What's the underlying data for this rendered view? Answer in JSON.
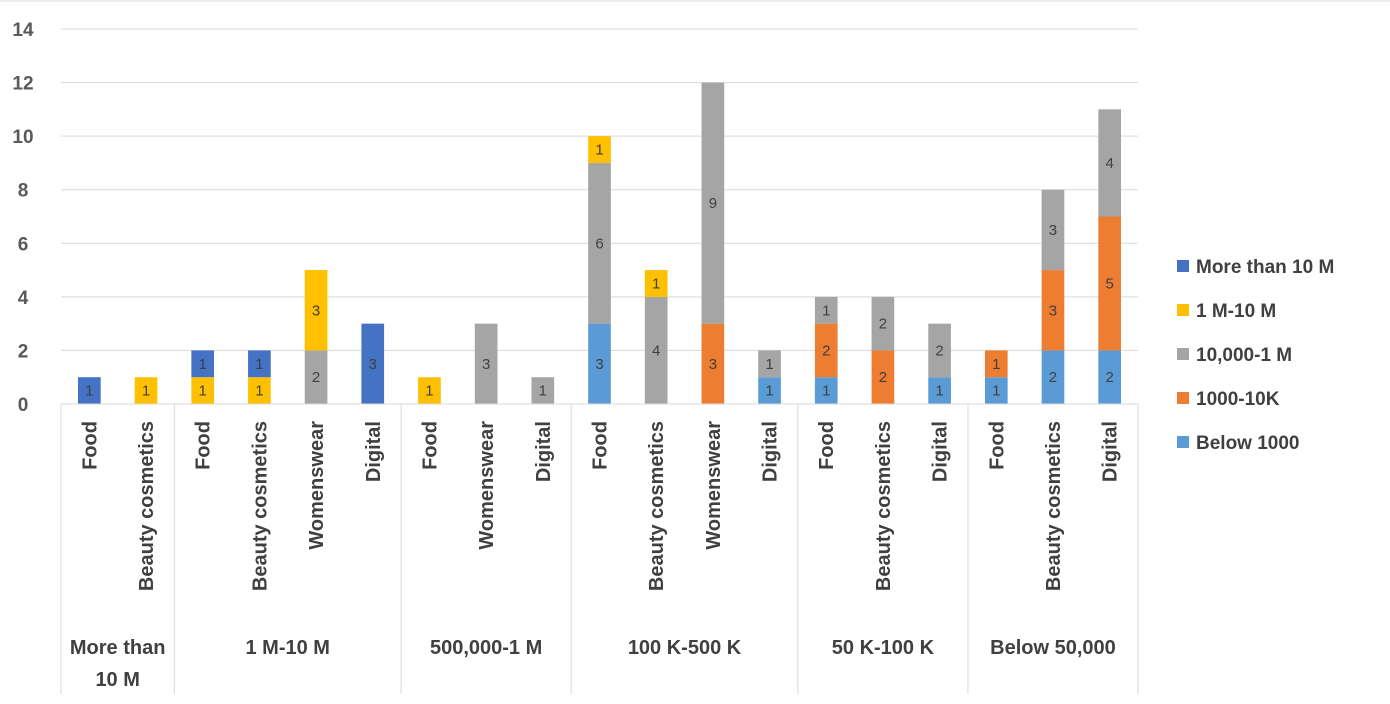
{
  "chart_data": {
    "type": "bar",
    "stacked": true,
    "ylim": [
      0,
      14
    ],
    "yticks": [
      0,
      2,
      4,
      6,
      8,
      10,
      12,
      14
    ],
    "grid": true,
    "legend_position": "right",
    "series": [
      {
        "name": "More than 10 M",
        "color": "#4472C4"
      },
      {
        "name": "1 M-10 M",
        "color": "#FFC000"
      },
      {
        "name": "10,000-1 M",
        "color": "#A5A5A5"
      },
      {
        "name": "1000-10K",
        "color": "#ED7D31"
      },
      {
        "name": "Below 1000",
        "color": "#5B9BD5"
      }
    ],
    "stack_order": [
      "Below 1000",
      "1000-10K",
      "10,000-1 M",
      "1 M-10 M",
      "More than 10 M"
    ],
    "legend_order": [
      "More than 10 M",
      "1 M-10 M",
      "10,000-1 M",
      "1000-10K",
      "Below 1000"
    ],
    "groups": [
      {
        "label": "More than 10 M",
        "categories": [
          {
            "label": "Food",
            "values": {
              "More than 10 M": 1
            }
          },
          {
            "label": "Beauty cosmetics",
            "values": {
              "1 M-10 M": 1
            }
          }
        ]
      },
      {
        "label": "1 M-10 M",
        "categories": [
          {
            "label": "Food",
            "values": {
              "1 M-10 M": 1,
              "More than 10 M": 1
            }
          },
          {
            "label": "Beauty cosmetics",
            "values": {
              "1 M-10 M": 1,
              "More than 10 M": 1
            }
          },
          {
            "label": "Womenswear",
            "values": {
              "10,000-1 M": 2,
              "1 M-10 M": 3
            }
          },
          {
            "label": "Digital",
            "values": {
              "More than 10 M": 3
            }
          }
        ]
      },
      {
        "label": "500,000-1 M",
        "categories": [
          {
            "label": "Food",
            "values": {
              "1 M-10 M": 1
            }
          },
          {
            "label": "Womenswear",
            "values": {
              "10,000-1 M": 3
            }
          },
          {
            "label": "Digital",
            "values": {
              "10,000-1 M": 1
            }
          }
        ]
      },
      {
        "label": "100 K-500 K",
        "categories": [
          {
            "label": "Food",
            "values": {
              "Below 1000": 3,
              "10,000-1 M": 6,
              "1 M-10 M": 1
            }
          },
          {
            "label": "Beauty cosmetics",
            "values": {
              "10,000-1 M": 4,
              "1 M-10 M": 1
            }
          },
          {
            "label": "Womenswear",
            "values": {
              "1000-10K": 3,
              "10,000-1 M": 9
            }
          },
          {
            "label": "Digital",
            "values": {
              "Below 1000": 1,
              "10,000-1 M": 1
            }
          }
        ]
      },
      {
        "label": "50 K-100 K",
        "categories": [
          {
            "label": "Food",
            "values": {
              "Below 1000": 1,
              "1000-10K": 2,
              "10,000-1 M": 1
            }
          },
          {
            "label": "Beauty cosmetics",
            "values": {
              "1000-10K": 2,
              "10,000-1 M": 2
            }
          },
          {
            "label": "Digital",
            "values": {
              "Below 1000": 1,
              "10,000-1 M": 2
            }
          }
        ]
      },
      {
        "label": "Below 50,000",
        "categories": [
          {
            "label": "Food",
            "values": {
              "Below 1000": 1,
              "1000-10K": 1
            }
          },
          {
            "label": "Beauty cosmetics",
            "values": {
              "Below 1000": 2,
              "1000-10K": 3,
              "10,000-1 M": 3
            }
          },
          {
            "label": "Digital",
            "values": {
              "Below 1000": 2,
              "1000-10K": 5,
              "10,000-1 M": 4
            }
          }
        ]
      }
    ]
  }
}
